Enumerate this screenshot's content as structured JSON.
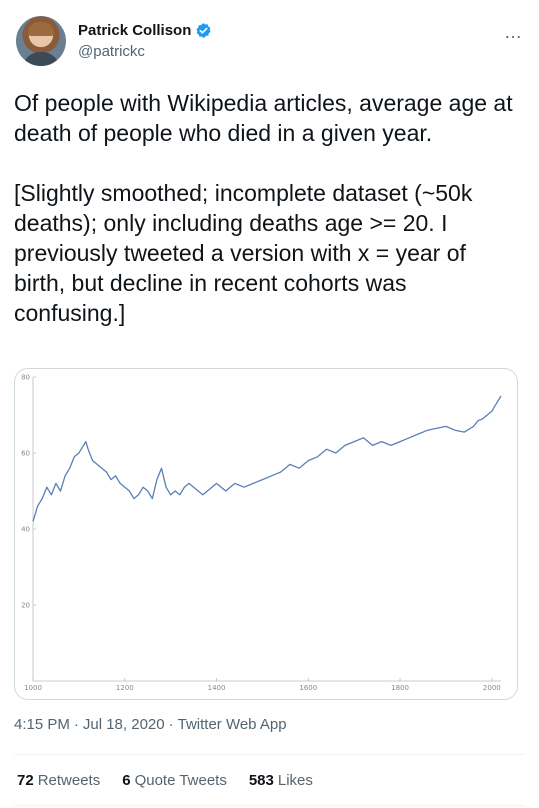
{
  "author": {
    "name": "Patrick Collison",
    "handle": "@patrickc"
  },
  "more_icon": "…",
  "tweet_text": "Of people with Wikipedia articles, average age at death of people who died in a given year.\n\n[Slightly smoothed; incomplete dataset (~50k deaths); only including deaths age >= 20. I previously tweeted a version with x = year of birth, but decline in recent cohorts was confusing.]",
  "meta": {
    "time": "4:15 PM",
    "date": "Jul 18, 2020",
    "source": "Twitter Web App"
  },
  "stats": {
    "retweets_count": "72",
    "retweets_label": "Retweets",
    "quotes_count": "6",
    "quotes_label": "Quote Tweets",
    "likes_count": "583",
    "likes_label": "Likes"
  },
  "colors": {
    "line": "#5b7fb5",
    "verified": "#1d9bf0"
  },
  "chart_data": {
    "type": "line",
    "title": "",
    "xlabel": "",
    "ylabel": "",
    "xlim": [
      1000,
      2020
    ],
    "ylim": [
      0,
      80
    ],
    "xticks": [
      1000,
      1200,
      1400,
      1600,
      1800,
      2000
    ],
    "yticks": [
      20,
      40,
      60,
      80
    ],
    "grid": false,
    "series": [
      {
        "x": [
          1000,
          1010,
          1020,
          1030,
          1040,
          1050,
          1060,
          1070,
          1080,
          1090,
          1100,
          1110,
          1115,
          1120,
          1130,
          1140,
          1150,
          1160,
          1170,
          1180,
          1190,
          1200,
          1210,
          1220,
          1230,
          1240,
          1250,
          1260,
          1270,
          1280,
          1290,
          1300,
          1310,
          1320,
          1330,
          1340,
          1350,
          1360,
          1370,
          1380,
          1390,
          1400,
          1420,
          1440,
          1460,
          1480,
          1500,
          1520,
          1540,
          1560,
          1580,
          1600,
          1620,
          1640,
          1660,
          1680,
          1700,
          1720,
          1740,
          1760,
          1780,
          1800,
          1820,
          1840,
          1860,
          1880,
          1900,
          1920,
          1940,
          1960,
          1970,
          1980,
          1990,
          2000,
          2010,
          2020
        ],
        "y": [
          42,
          46,
          48,
          51,
          49,
          52,
          50,
          54,
          56,
          59,
          60,
          62,
          63,
          61,
          58,
          57,
          56,
          55,
          53,
          54,
          52,
          51,
          50,
          48,
          49,
          51,
          50,
          48,
          53,
          56,
          51,
          49,
          50,
          49,
          51,
          52,
          51,
          50,
          49,
          50,
          51,
          52,
          50,
          52,
          51,
          52,
          53,
          54,
          55,
          57,
          56,
          58,
          59,
          61,
          60,
          62,
          63,
          64,
          62,
          63,
          62,
          63,
          64,
          65,
          66,
          66.5,
          67,
          66,
          65.5,
          67,
          68.5,
          69,
          70,
          71,
          73,
          75
        ]
      }
    ]
  }
}
